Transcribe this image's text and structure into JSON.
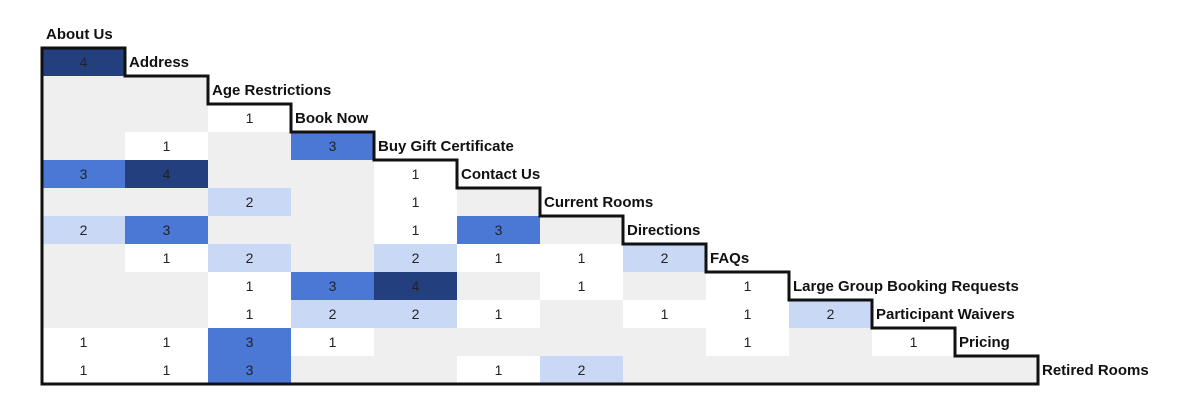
{
  "chart_data": {
    "type": "heatmap",
    "title": "",
    "labels": [
      "About Us",
      "Address",
      "Age Restrictions",
      "Book Now",
      "Buy Gift Certificate",
      "Contact Us",
      "Current Rooms",
      "Directions",
      "FAQs",
      "Large Group Booking Requests",
      "Participant Waivers",
      "Pricing",
      "Retired Rooms"
    ],
    "rows": [
      [
        4
      ],
      [
        null,
        null
      ],
      [
        null,
        null,
        1
      ],
      [
        null,
        1,
        null,
        3
      ],
      [
        3,
        4,
        null,
        null,
        1
      ],
      [
        null,
        null,
        2,
        null,
        1,
        null
      ],
      [
        2,
        3,
        null,
        null,
        1,
        3,
        null
      ],
      [
        null,
        1,
        2,
        null,
        2,
        1,
        1,
        2
      ],
      [
        null,
        null,
        1,
        3,
        4,
        null,
        1,
        null,
        1
      ],
      [
        null,
        null,
        1,
        2,
        2,
        1,
        null,
        1,
        1,
        2
      ],
      [
        1,
        1,
        3,
        1,
        null,
        null,
        null,
        null,
        1,
        null,
        1
      ],
      [
        1,
        1,
        3,
        null,
        null,
        1,
        2,
        null,
        null,
        null,
        null,
        null
      ]
    ],
    "value_range": [
      1,
      4
    ],
    "grid": false,
    "legend": "none"
  },
  "colors": {
    "level_1": "#ffffff",
    "level_2": "#c9d8f5",
    "level_3": "#4a78d4",
    "level_4": "#243f7e",
    "empty": "#efefef",
    "outline": "#111111",
    "text": "#222222"
  }
}
